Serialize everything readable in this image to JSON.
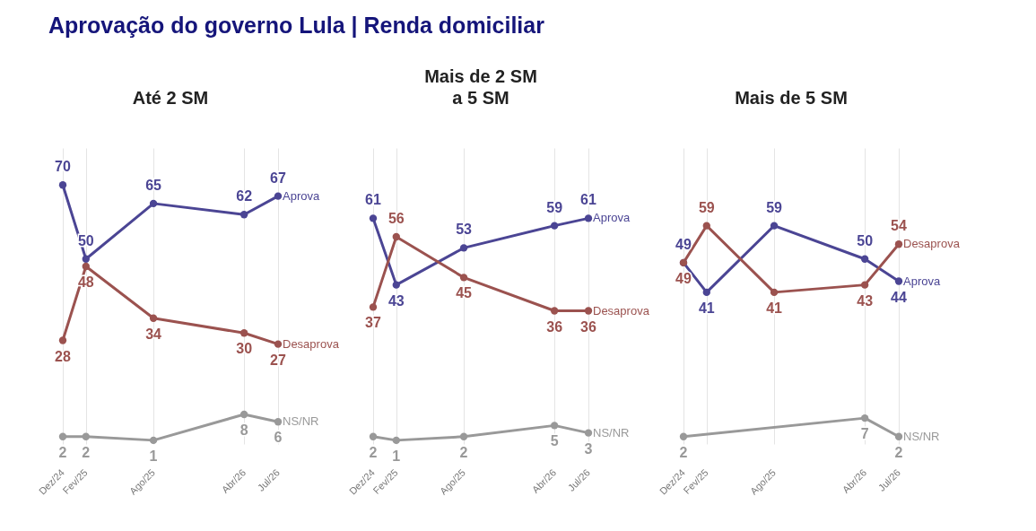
{
  "chart_data": [
    {
      "type": "other",
      "title": "Aprovação do governo Lula | Renda domiciliar"
    },
    {
      "type": "line",
      "title": "Até 2 SM",
      "x": [
        "2024-12",
        "2025-02",
        "2025-08",
        "2026-04",
        "2026-07"
      ],
      "xlim": [
        "2024-12",
        "2026-07"
      ],
      "xticks": [
        {
          "value": "2024-12",
          "label": "Dez/24"
        },
        {
          "value": "2025-02",
          "label": "Fev/25"
        },
        {
          "value": "2025-08",
          "label": "Ago/25"
        },
        {
          "value": "2026-04",
          "label": "Abr/26"
        },
        {
          "value": "2026-07",
          "label": "Jul/26"
        }
      ],
      "ylim": [
        0,
        80
      ],
      "tick_labels": "x",
      "grid": "x",
      "legend": false,
      "marker": "circle",
      "data_labels": true,
      "series": [
        {
          "name": "Aprova",
          "color": "#4b4594",
          "values": [
            70,
            50,
            65,
            62,
            67
          ]
        },
        {
          "name": "Desaprova",
          "color": "#9b524f",
          "values": [
            28,
            48,
            34,
            30,
            27
          ]
        },
        {
          "name": "NS/NR",
          "color": "#999999",
          "values": [
            2,
            2,
            1,
            8,
            6
          ]
        }
      ]
    },
    {
      "type": "line",
      "title": "Mais de 2 SM\na 5 SM",
      "x": [
        "2024-12",
        "2025-02",
        "2025-08",
        "2026-04",
        "2026-07"
      ],
      "xlim": [
        "2024-12",
        "2026-07"
      ],
      "xticks": [
        {
          "value": "2024-12",
          "label": "Dez/24"
        },
        {
          "value": "2025-02",
          "label": "Fev/25"
        },
        {
          "value": "2025-08",
          "label": "Ago/25"
        },
        {
          "value": "2026-04",
          "label": "Abr/26"
        },
        {
          "value": "2026-07",
          "label": "Jul/26"
        }
      ],
      "ylim": [
        0,
        80
      ],
      "tick_labels": "x",
      "grid": "x",
      "legend": false,
      "marker": "circle",
      "data_labels": true,
      "series": [
        {
          "name": "Aprova",
          "color": "#4b4594",
          "values": [
            61,
            43,
            53,
            59,
            61
          ]
        },
        {
          "name": "Desaprova",
          "color": "#9b524f",
          "values": [
            37,
            56,
            45,
            36,
            36
          ]
        },
        {
          "name": "NS/NR",
          "color": "#999999",
          "values": [
            2,
            1,
            2,
            5,
            3
          ]
        }
      ]
    },
    {
      "type": "line",
      "title": "Mais de 5 SM",
      "x": [
        "2024-12",
        "2025-02",
        "2025-08",
        "2026-04",
        "2026-07"
      ],
      "xlim": [
        "2024-12",
        "2026-07"
      ],
      "xticks": [
        {
          "value": "2024-12",
          "label": "Dez/24"
        },
        {
          "value": "2025-02",
          "label": "Fev/25"
        },
        {
          "value": "2025-08",
          "label": "Ago/25"
        },
        {
          "value": "2026-04",
          "label": "Abr/26"
        },
        {
          "value": "2026-07",
          "label": "Jul/26"
        }
      ],
      "ylim": [
        0,
        80
      ],
      "tick_labels": "x",
      "grid": "x",
      "legend": false,
      "marker": "circle",
      "data_labels": true,
      "series": [
        {
          "name": "Aprova",
          "color": "#4b4594",
          "values": [
            49,
            41,
            59,
            50,
            44
          ]
        },
        {
          "name": "Desaprova",
          "color": "#9b524f",
          "values": [
            49,
            59,
            41,
            43,
            54
          ]
        },
        {
          "name": "NS/NR",
          "color": "#999999",
          "values": [
            2,
            null,
            null,
            7,
            2
          ]
        }
      ]
    }
  ]
}
